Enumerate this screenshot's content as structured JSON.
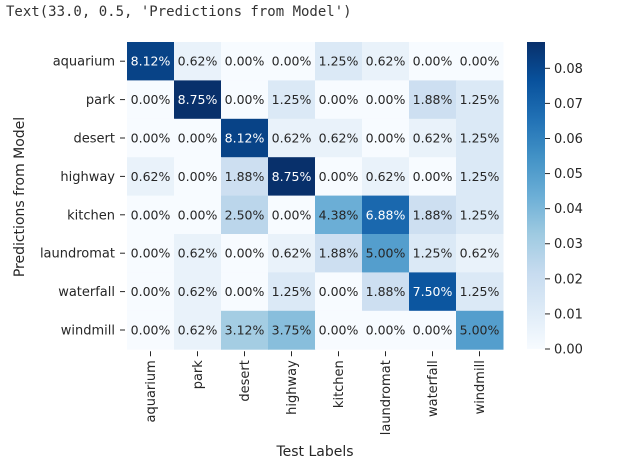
{
  "output_text": "Text(33.0, 0.5, 'Predictions from Model')",
  "chart_data": {
    "type": "heatmap",
    "title": "",
    "xlabel": "Test Labels",
    "ylabel": "Predictions from Model",
    "x_categories": [
      "aquarium",
      "park",
      "desert",
      "highway",
      "kitchen",
      "laundromat",
      "waterfall",
      "windmill"
    ],
    "y_categories": [
      "aquarium",
      "park",
      "desert",
      "highway",
      "kitchen",
      "laundromat",
      "waterfall",
      "windmill"
    ],
    "values": [
      [
        0.0812,
        0.0062,
        0.0,
        0.0,
        0.0125,
        0.0062,
        0.0,
        0.0
      ],
      [
        0.0,
        0.0875,
        0.0,
        0.0125,
        0.0,
        0.0,
        0.0188,
        0.0125
      ],
      [
        0.0,
        0.0,
        0.0812,
        0.0062,
        0.0062,
        0.0,
        0.0062,
        0.0125
      ],
      [
        0.0062,
        0.0,
        0.0188,
        0.0875,
        0.0,
        0.0062,
        0.0,
        0.0125
      ],
      [
        0.0,
        0.0,
        0.025,
        0.0,
        0.0438,
        0.0688,
        0.0188,
        0.0125
      ],
      [
        0.0,
        0.0062,
        0.0,
        0.0062,
        0.0188,
        0.05,
        0.0125,
        0.0062
      ],
      [
        0.0,
        0.0062,
        0.0,
        0.0125,
        0.0,
        0.0188,
        0.075,
        0.0125
      ],
      [
        0.0,
        0.0062,
        0.0312,
        0.0375,
        0.0,
        0.0,
        0.0,
        0.05
      ]
    ],
    "cell_labels": [
      [
        "8.12%",
        "0.62%",
        "0.00%",
        "0.00%",
        "1.25%",
        "0.62%",
        "0.00%",
        "0.00%"
      ],
      [
        "0.00%",
        "8.75%",
        "0.00%",
        "1.25%",
        "0.00%",
        "0.00%",
        "1.88%",
        "1.25%"
      ],
      [
        "0.00%",
        "0.00%",
        "8.12%",
        "0.62%",
        "0.62%",
        "0.00%",
        "0.62%",
        "1.25%"
      ],
      [
        "0.62%",
        "0.00%",
        "1.88%",
        "8.75%",
        "0.00%",
        "0.62%",
        "0.00%",
        "1.25%"
      ],
      [
        "0.00%",
        "0.00%",
        "2.50%",
        "0.00%",
        "4.38%",
        "6.88%",
        "1.88%",
        "1.25%"
      ],
      [
        "0.00%",
        "0.62%",
        "0.00%",
        "0.62%",
        "1.88%",
        "5.00%",
        "1.25%",
        "0.62%"
      ],
      [
        "0.00%",
        "0.62%",
        "0.00%",
        "1.25%",
        "0.00%",
        "1.88%",
        "7.50%",
        "1.25%"
      ],
      [
        "0.00%",
        "0.62%",
        "3.12%",
        "3.75%",
        "0.00%",
        "0.00%",
        "0.00%",
        "5.00%"
      ]
    ],
    "colormap": "Blues",
    "colormap_stops": [
      "#f7fbff",
      "#deebf7",
      "#c6dbef",
      "#9ecae1",
      "#6baed6",
      "#4292c6",
      "#2171b5",
      "#08519c",
      "#08306b"
    ],
    "vmin": 0.0,
    "vmax": 0.0875,
    "colorbar_ticks": [
      "0.00",
      "0.01",
      "0.02",
      "0.03",
      "0.04",
      "0.05",
      "0.06",
      "0.07",
      "0.08"
    ],
    "colorbar_tick_values": [
      0.0,
      0.01,
      0.02,
      0.03,
      0.04,
      0.05,
      0.06,
      0.07,
      0.08
    ],
    "text_color_dark": "#262626",
    "text_color_light": "#ffffff"
  }
}
